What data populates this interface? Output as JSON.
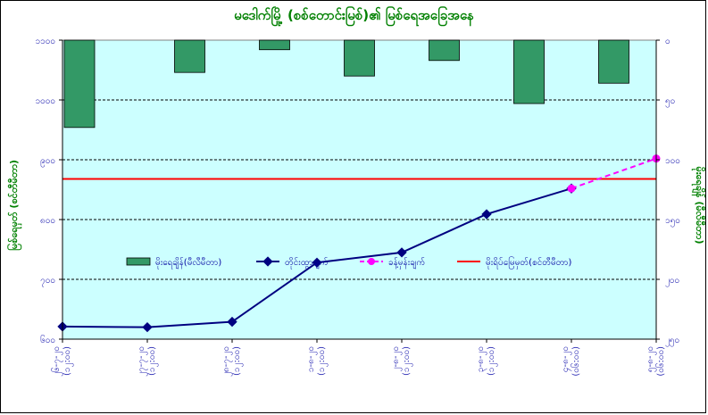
{
  "chart_data": {
    "type": "bar+line",
    "title": "မဒေါက်မြို့ (စစ်တောင်းမြစ်)၏ မြစ်ရေအခြေအနေ",
    "ylabel_left": "မြစ်ရေမှတ် (စင်တီမီတာ)",
    "ylabel_right": "မိုးရေချိန် (မီလီမီတာ)",
    "left_axis": {
      "range": [
        600,
        1100
      ],
      "ticks": [
        "၆၀၀",
        "၇၀၀",
        "၈၀၀",
        "၉၀၀",
        "၁၀၀၀",
        "၁၁၀၀"
      ],
      "values": [
        600,
        700,
        800,
        900,
        1000,
        1100
      ]
    },
    "right_axis": {
      "range": [
        0,
        250
      ],
      "inverted": true,
      "ticks": [
        "၀",
        "၅၀",
        "၁၀၀",
        "၁၅၀",
        "၂၀၀",
        "၂၅၀"
      ],
      "values": [
        0,
        50,
        100,
        150,
        200,
        250
      ]
    },
    "categories": [
      [
        "၂၆-၇-၂၀",
        "(၁၂:၀၀)"
      ],
      [
        "၂၇-၇-၂၀",
        "(၁၂:၀၀)"
      ],
      [
        "၂၈-၇-၂၀",
        "(၁၂:၀၀)"
      ],
      [
        "၁-၈-၂၀",
        "(၁၂:၀၀)"
      ],
      [
        "၂-၈-၂၀",
        "(၁၂:၀၀)"
      ],
      [
        "၃-၈-၂၀",
        "(၁၂:၀၀)"
      ],
      [
        "၄-၈-၂၀",
        "(၀၆:၀၀)"
      ],
      [
        "၅-၈-၂၀",
        "(၀၆:၀၀)"
      ]
    ],
    "series": [
      {
        "name": "မိုးရေချိန်(မီလီမီတာ)",
        "type": "bar",
        "axis": "right",
        "color": "#339966",
        "values": [
          73,
          27,
          8,
          30,
          17,
          53,
          36,
          null
        ]
      },
      {
        "name": "တိုင်းထွာချက်",
        "type": "line",
        "axis": "left",
        "color": "#000080",
        "values": [
          621,
          620,
          629,
          728,
          745,
          809,
          852,
          null
        ]
      },
      {
        "name": "ခန့်မှန်းချက်",
        "type": "line-dashed",
        "axis": "left",
        "color": "#ff00ff",
        "values": [
          null,
          null,
          null,
          null,
          null,
          null,
          852,
          902
        ]
      },
      {
        "name": "မိုးရိပ်မြေမှတ်(စင်တီမီတာ)",
        "type": "hline",
        "axis": "left",
        "color": "#ff0000",
        "value": 868
      }
    ],
    "grid": true,
    "legend": "center"
  }
}
